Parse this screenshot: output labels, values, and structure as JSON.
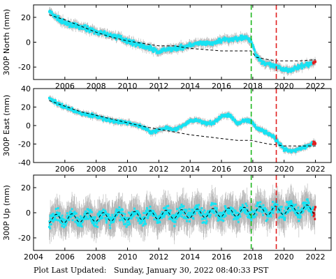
{
  "chart_data": [
    {
      "type": "scatter",
      "ylabel": "300P North (mm)",
      "xlim": [
        2004,
        2023
      ],
      "ylim": [
        -30,
        30
      ],
      "yticks": [
        -20,
        0,
        20
      ],
      "xticks": [
        2006,
        2008,
        2010,
        2012,
        2014,
        2016,
        2018,
        2020,
        2022
      ],
      "grid": false,
      "observed_colors": {
        "errorbar": "#b4b4b4",
        "point": "#17e3f3",
        "recent": "#e02020"
      },
      "series": [
        {
          "kind": "observed",
          "x": [
            2005.0,
            2005.3,
            2005.7,
            2006.0,
            2006.5,
            2007.0,
            2007.5,
            2008.0,
            2008.5,
            2009.0,
            2009.5,
            2010.0,
            2010.5,
            2011.0,
            2011.5,
            2012.0,
            2012.5,
            2013.0,
            2013.5,
            2014.0,
            2014.5,
            2015.0,
            2015.5,
            2016.0,
            2016.5,
            2017.0,
            2017.5,
            2017.9,
            2018.2,
            2018.6,
            2019.0,
            2019.5,
            2020.0,
            2020.5,
            2021.0,
            2021.5,
            2022.0
          ],
          "y": [
            25,
            21,
            18,
            15,
            14,
            12,
            11,
            8,
            7,
            5,
            4,
            1,
            -1,
            -3,
            -5,
            -8,
            -6,
            -5,
            -4,
            -2,
            -1,
            -1,
            -1,
            2,
            2,
            3,
            4,
            1,
            -10,
            -16,
            -18,
            -20,
            -22,
            -22,
            -20,
            -18,
            -16
          ]
        },
        {
          "kind": "model",
          "x": [
            2005.0,
            2006.0,
            2007.0,
            2008.0,
            2009.0,
            2010.0,
            2011.0,
            2012.0,
            2013.0,
            2014.0,
            2015.0,
            2016.0,
            2017.0,
            2017.9,
            2018.2,
            2019.0,
            2019.6,
            2020.0,
            2021.0,
            2022.0
          ],
          "y": [
            22,
            18,
            13,
            8,
            4,
            1,
            -1,
            -3,
            -3,
            -5,
            -6,
            -7,
            -7,
            -7,
            -12,
            -14,
            -15,
            -15,
            -15,
            -14
          ]
        }
      ],
      "reference_lines": [
        {
          "x": 2017.9,
          "color": "#1fb81f"
        },
        {
          "x": 2019.5,
          "color": "#e02020"
        }
      ]
    },
    {
      "type": "scatter",
      "ylabel": "300P East (mm)",
      "xlim": [
        2004,
        2023
      ],
      "ylim": [
        -40,
        40
      ],
      "yticks": [
        -40,
        -20,
        0,
        20,
        40
      ],
      "xticks": [
        2006,
        2008,
        2010,
        2012,
        2014,
        2016,
        2018,
        2020,
        2022
      ],
      "grid": false,
      "observed_colors": {
        "errorbar": "#b4b4b4",
        "point": "#17e3f3",
        "recent": "#e02020"
      },
      "series": [
        {
          "kind": "observed",
          "x": [
            2005.0,
            2005.5,
            2006.0,
            2006.5,
            2007.0,
            2007.5,
            2008.0,
            2008.5,
            2009.0,
            2009.5,
            2010.0,
            2010.5,
            2011.0,
            2011.5,
            2012.0,
            2012.5,
            2013.0,
            2013.5,
            2014.0,
            2014.5,
            2015.0,
            2015.5,
            2016.0,
            2016.5,
            2017.0,
            2017.5,
            2017.9,
            2018.3,
            2018.8,
            2019.3,
            2019.7,
            2020.0,
            2020.5,
            2021.0,
            2021.5,
            2022.0
          ],
          "y": [
            30,
            24,
            20,
            17,
            13,
            12,
            10,
            7,
            5,
            4,
            3,
            1,
            -2,
            -7,
            -5,
            -2,
            -4,
            -1,
            5,
            6,
            2,
            3,
            10,
            12,
            2,
            6,
            4,
            -3,
            -7,
            -12,
            -20,
            -26,
            -28,
            -25,
            -22,
            -18
          ]
        },
        {
          "kind": "model",
          "x": [
            2005.0,
            2006.0,
            2007.0,
            2008.0,
            2009.0,
            2010.0,
            2011.0,
            2012.0,
            2013.0,
            2014.0,
            2015.0,
            2016.0,
            2017.0,
            2017.9,
            2018.4,
            2019.0,
            2019.6,
            2020.0,
            2021.0,
            2022.0
          ],
          "y": [
            27,
            21,
            15,
            11,
            7,
            3,
            -1,
            -4,
            -7,
            -10,
            -12,
            -14,
            -16,
            -16,
            -18,
            -20,
            -21,
            -22,
            -22,
            -22
          ]
        }
      ],
      "reference_lines": [
        {
          "x": 2017.9,
          "color": "#1fb81f"
        },
        {
          "x": 2019.5,
          "color": "#e02020"
        }
      ]
    },
    {
      "type": "scatter",
      "ylabel": "300P Up (mm)",
      "xlim": [
        2004,
        2023
      ],
      "ylim": [
        -30,
        30
      ],
      "yticks": [
        -20,
        0,
        20
      ],
      "xticks": [
        2004,
        2006,
        2008,
        2010,
        2012,
        2014,
        2016,
        2018,
        2020,
        2022
      ],
      "grid": false,
      "observed_colors": {
        "errorbar": "#b4b4b4",
        "point": "#17e3f3",
        "recent": "#e02020"
      },
      "series": [
        {
          "kind": "model",
          "seasonal": true,
          "trend_start": -5,
          "trend_end": 3,
          "amplitude": 3.5,
          "x_start": 2005.0,
          "x_end": 2022.0
        }
      ],
      "reference_lines": [
        {
          "x": 2017.9,
          "color": "#1fb81f"
        },
        {
          "x": 2019.5,
          "color": "#e02020"
        }
      ]
    }
  ],
  "footer": {
    "label": "Plot Last Updated:",
    "timestamp": "Sunday, January 30, 2022 08:40:33 PST"
  }
}
